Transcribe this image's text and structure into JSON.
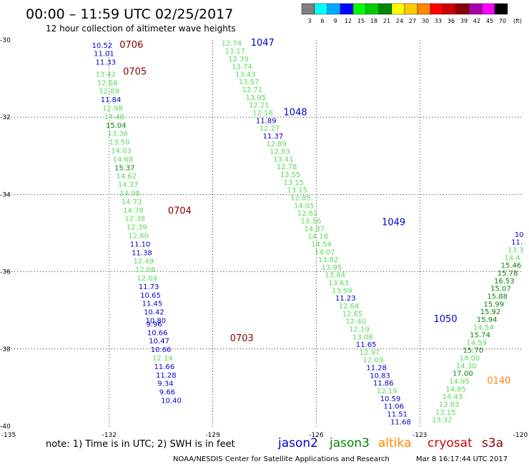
{
  "header": {
    "title": "00:00 – 11:59 UTC 02/25/2017",
    "subtitle": "12 hour collection of altimeter wave heights"
  },
  "legend": {
    "ticks": [
      "3",
      "6",
      "9",
      "12",
      "15",
      "18",
      "21",
      "24",
      "27",
      "30",
      "33",
      "36",
      "39",
      "42",
      "45",
      "70"
    ],
    "unit": "(ft)",
    "colors": [
      "#808080",
      "#00ffff",
      "#00aaff",
      "#0000ff",
      "#00ff00",
      "#00cc00",
      "#008800",
      "#ffff00",
      "#ffcc00",
      "#ff8800",
      "#ff0000",
      "#cc0000",
      "#880000",
      "#aa00aa",
      "#ff00ff",
      "#000000"
    ]
  },
  "axes": {
    "x_ticks": [
      "-135",
      "-132",
      "-129",
      "-126",
      "-123",
      "-120"
    ],
    "y_ticks": [
      "-30",
      "-32",
      "-34",
      "-36",
      "-38",
      "-40"
    ]
  },
  "footer": {
    "note": "note:  1) Time is in UTC; 2) SWH is in feet",
    "satellites": [
      {
        "name": "jason2",
        "color": "#0000cc"
      },
      {
        "name": "jason3",
        "color": "#008800"
      },
      {
        "name": "altika",
        "color": "#ff8800"
      },
      {
        "name": "cryosat",
        "color": "#cc0000"
      },
      {
        "name": "s3a",
        "color": "#880000"
      }
    ],
    "credit": "NOAA/NESDIS Center for Satellite Applications and Research",
    "timestamp": "Mar  8 16:17:44 UTC 2017"
  },
  "tracks": [
    {
      "name": "track-s3a-left",
      "time_labels": [
        {
          "t": "0706",
          "color": "#880000",
          "lon": -131.7,
          "lat": -30.2
        },
        {
          "t": "0705",
          "color": "#880000",
          "lon": -131.6,
          "lat": -30.9
        },
        {
          "t": "0704",
          "color": "#880000",
          "lon": -130.3,
          "lat": -34.5
        },
        {
          "t": "0703",
          "color": "#880000",
          "lon": -128.5,
          "lat": -37.8
        }
      ],
      "points": [
        {
          "v": "10.52",
          "c": "#0000cc",
          "lon": -132.5,
          "lat": -30.2
        },
        {
          "v": "11.01",
          "c": "#0000cc",
          "lon": -132.45,
          "lat": -30.42
        },
        {
          "v": "11.33",
          "c": "#0000cc",
          "lon": -132.4,
          "lat": -30.64
        },
        {
          "v": "13.42",
          "c": "#55dd55",
          "lon": -132.4,
          "lat": -30.95
        },
        {
          "v": "12.68",
          "c": "#55dd55",
          "lon": -132.35,
          "lat": -31.17
        },
        {
          "v": "12.89",
          "c": "#55dd55",
          "lon": -132.3,
          "lat": -31.39
        },
        {
          "v": "11.84",
          "c": "#0000cc",
          "lon": -132.25,
          "lat": -31.61
        },
        {
          "v": "12.98",
          "c": "#55dd55",
          "lon": -132.2,
          "lat": -31.83
        },
        {
          "v": "14.48",
          "c": "#55dd55",
          "lon": -132.15,
          "lat": -32.05
        },
        {
          "v": "15.04",
          "c": "#008800",
          "lon": -132.1,
          "lat": -32.27
        },
        {
          "v": "13.36",
          "c": "#55dd55",
          "lon": -132.05,
          "lat": -32.49
        },
        {
          "v": "13.50",
          "c": "#55dd55",
          "lon": -132.0,
          "lat": -32.71
        },
        {
          "v": "14.03",
          "c": "#55dd55",
          "lon": -131.95,
          "lat": -32.93
        },
        {
          "v": "14.68",
          "c": "#55dd55",
          "lon": -131.9,
          "lat": -33.15
        },
        {
          "v": "15.37",
          "c": "#008800",
          "lon": -131.85,
          "lat": -33.37
        },
        {
          "v": "14.62",
          "c": "#55dd55",
          "lon": -131.8,
          "lat": -33.59
        },
        {
          "v": "14.37",
          "c": "#55dd55",
          "lon": -131.75,
          "lat": -33.81
        },
        {
          "v": "14.98",
          "c": "#55dd55",
          "lon": -131.7,
          "lat": -34.03
        },
        {
          "v": "14.73",
          "c": "#55dd55",
          "lon": -131.65,
          "lat": -34.25
        },
        {
          "v": "14.78",
          "c": "#55dd55",
          "lon": -131.6,
          "lat": -34.47
        },
        {
          "v": "12.38",
          "c": "#55dd55",
          "lon": -131.55,
          "lat": -34.69
        },
        {
          "v": "12.39",
          "c": "#55dd55",
          "lon": -131.5,
          "lat": -34.91
        },
        {
          "v": "12.80",
          "c": "#55dd55",
          "lon": -131.45,
          "lat": -35.13
        },
        {
          "v": "11.10",
          "c": "#0000cc",
          "lon": -131.4,
          "lat": -35.35
        },
        {
          "v": "11.38",
          "c": "#0000cc",
          "lon": -131.35,
          "lat": -35.57
        },
        {
          "v": "12.49",
          "c": "#55dd55",
          "lon": -131.3,
          "lat": -35.79
        },
        {
          "v": "12.08",
          "c": "#55dd55",
          "lon": -131.25,
          "lat": -36.01
        },
        {
          "v": "12.04",
          "c": "#55dd55",
          "lon": -131.2,
          "lat": -36.23
        },
        {
          "v": "11.73",
          "c": "#0000cc",
          "lon": -131.15,
          "lat": -36.45
        },
        {
          "v": "10.65",
          "c": "#0000cc",
          "lon": -131.1,
          "lat": -36.67
        },
        {
          "v": "11.45",
          "c": "#0000cc",
          "lon": -131.05,
          "lat": -36.89
        },
        {
          "v": "10.42",
          "c": "#0000cc",
          "lon": -131.0,
          "lat": -37.11
        },
        {
          "v": "10.80",
          "c": "#0000cc",
          "lon": -130.95,
          "lat": -37.33
        },
        {
          "v": "9.96",
          "c": "#0000cc",
          "lon": -130.93,
          "lat": -37.42
        },
        {
          "v": "10.66",
          "c": "#0000cc",
          "lon": -130.9,
          "lat": -37.64
        },
        {
          "v": "10.47",
          "c": "#0000cc",
          "lon": -130.85,
          "lat": -37.86
        },
        {
          "v": "10.66",
          "c": "#0000cc",
          "lon": -130.8,
          "lat": -38.08
        },
        {
          "v": "12.14",
          "c": "#55dd55",
          "lon": -130.75,
          "lat": -38.3
        },
        {
          "v": "11.66",
          "c": "#0000cc",
          "lon": -130.7,
          "lat": -38.52
        },
        {
          "v": "11.28",
          "c": "#0000cc",
          "lon": -130.65,
          "lat": -38.74
        },
        {
          "v": "9.34",
          "c": "#0000cc",
          "lon": -130.6,
          "lat": -38.96
        },
        {
          "v": "9.66",
          "c": "#0000cc",
          "lon": -130.55,
          "lat": -39.18
        },
        {
          "v": "10.40",
          "c": "#0000cc",
          "lon": -130.5,
          "lat": -39.4
        }
      ]
    },
    {
      "name": "track-jason2-middle",
      "time_labels": [
        {
          "t": "1047",
          "color": "#0000cc",
          "lon": -127.9,
          "lat": -30.15
        },
        {
          "t": "1048",
          "color": "#0000cc",
          "lon": -126.95,
          "lat": -31.95
        },
        {
          "t": "1049",
          "color": "#0000cc",
          "lon": -124.1,
          "lat": -34.8
        },
        {
          "t": "1050",
          "color": "#0000cc",
          "lon": -122.6,
          "lat": -37.3
        }
      ],
      "points": [
        {
          "v": "12.74",
          "c": "#55dd55",
          "lon": -128.75,
          "lat": -30.15
        },
        {
          "v": "13.17",
          "c": "#55dd55",
          "lon": -128.65,
          "lat": -30.35
        },
        {
          "v": "12.39",
          "c": "#55dd55",
          "lon": -128.55,
          "lat": -30.55
        },
        {
          "v": "13.74",
          "c": "#55dd55",
          "lon": -128.45,
          "lat": -30.75
        },
        {
          "v": "13.43",
          "c": "#55dd55",
          "lon": -128.35,
          "lat": -30.95
        },
        {
          "v": "13.57",
          "c": "#55dd55",
          "lon": -128.25,
          "lat": -31.15
        },
        {
          "v": "12.71",
          "c": "#55dd55",
          "lon": -128.15,
          "lat": -31.35
        },
        {
          "v": "13.95",
          "c": "#55dd55",
          "lon": -128.05,
          "lat": -31.55
        },
        {
          "v": "12.21",
          "c": "#55dd55",
          "lon": -127.95,
          "lat": -31.75
        },
        {
          "v": "12.18",
          "c": "#55dd55",
          "lon": -127.85,
          "lat": -31.95
        },
        {
          "v": "11.89",
          "c": "#0000cc",
          "lon": -127.75,
          "lat": -32.15
        },
        {
          "v": "12.27",
          "c": "#55dd55",
          "lon": -127.65,
          "lat": -32.35
        },
        {
          "v": "11.37",
          "c": "#0000cc",
          "lon": -127.55,
          "lat": -32.55
        },
        {
          "v": "12.89",
          "c": "#55dd55",
          "lon": -127.45,
          "lat": -32.75
        },
        {
          "v": "12.83",
          "c": "#55dd55",
          "lon": -127.35,
          "lat": -32.95
        },
        {
          "v": "13.41",
          "c": "#55dd55",
          "lon": -127.25,
          "lat": -33.15
        },
        {
          "v": "12.78",
          "c": "#55dd55",
          "lon": -127.15,
          "lat": -33.35
        },
        {
          "v": "13.55",
          "c": "#55dd55",
          "lon": -127.05,
          "lat": -33.55
        },
        {
          "v": "13.15",
          "c": "#55dd55",
          "lon": -126.95,
          "lat": -33.75
        },
        {
          "v": "13.15",
          "c": "#55dd55",
          "lon": -126.85,
          "lat": -33.95
        },
        {
          "v": "12.85",
          "c": "#55dd55",
          "lon": -126.75,
          "lat": -34.15
        },
        {
          "v": "14.05",
          "c": "#55dd55",
          "lon": -126.65,
          "lat": -34.35
        },
        {
          "v": "12.62",
          "c": "#55dd55",
          "lon": -126.55,
          "lat": -34.55
        },
        {
          "v": "13.56",
          "c": "#55dd55",
          "lon": -126.45,
          "lat": -34.75
        },
        {
          "v": "14.37",
          "c": "#55dd55",
          "lon": -126.35,
          "lat": -34.95
        },
        {
          "v": "14.18",
          "c": "#55dd55",
          "lon": -126.25,
          "lat": -35.15
        },
        {
          "v": "14.54",
          "c": "#55dd55",
          "lon": -126.15,
          "lat": -35.35
        },
        {
          "v": "14.07",
          "c": "#55dd55",
          "lon": -126.05,
          "lat": -35.55
        },
        {
          "v": "13.62",
          "c": "#55dd55",
          "lon": -125.95,
          "lat": -35.75
        },
        {
          "v": "13.95",
          "c": "#55dd55",
          "lon": -125.85,
          "lat": -35.95
        },
        {
          "v": "13.84",
          "c": "#55dd55",
          "lon": -125.75,
          "lat": -36.15
        },
        {
          "v": "13.63",
          "c": "#55dd55",
          "lon": -125.65,
          "lat": -36.35
        },
        {
          "v": "13.99",
          "c": "#55dd55",
          "lon": -125.55,
          "lat": -36.55
        },
        {
          "v": "11.23",
          "c": "#0000cc",
          "lon": -125.45,
          "lat": -36.75
        },
        {
          "v": "12.64",
          "c": "#55dd55",
          "lon": -125.35,
          "lat": -36.95
        },
        {
          "v": "12.65",
          "c": "#55dd55",
          "lon": -125.25,
          "lat": -37.15
        },
        {
          "v": "12.40",
          "c": "#55dd55",
          "lon": -125.15,
          "lat": -37.35
        },
        {
          "v": "12.19",
          "c": "#55dd55",
          "lon": -125.05,
          "lat": -37.55
        },
        {
          "v": "13.08",
          "c": "#55dd55",
          "lon": -124.95,
          "lat": -37.75
        },
        {
          "v": "11.65",
          "c": "#0000cc",
          "lon": -124.85,
          "lat": -37.95
        },
        {
          "v": "12.97",
          "c": "#55dd55",
          "lon": -124.75,
          "lat": -38.15
        },
        {
          "v": "12.09",
          "c": "#55dd55",
          "lon": -124.65,
          "lat": -38.35
        },
        {
          "v": "11.28",
          "c": "#0000cc",
          "lon": -124.55,
          "lat": -38.55
        },
        {
          "v": "10.83",
          "c": "#0000cc",
          "lon": -124.45,
          "lat": -38.75
        },
        {
          "v": "11.86",
          "c": "#0000cc",
          "lon": -124.35,
          "lat": -38.95
        },
        {
          "v": "12.19",
          "c": "#55dd55",
          "lon": -124.25,
          "lat": -39.15
        },
        {
          "v": "10.59",
          "c": "#0000cc",
          "lon": -124.15,
          "lat": -39.35
        },
        {
          "v": "11.06",
          "c": "#0000cc",
          "lon": -124.05,
          "lat": -39.55
        },
        {
          "v": "11.51",
          "c": "#0000cc",
          "lon": -123.95,
          "lat": -39.75
        },
        {
          "v": "11.68",
          "c": "#0000cc",
          "lon": -123.85,
          "lat": -39.95
        },
        {
          "v": "11.49",
          "c": "#0000cc",
          "lon": -123.75,
          "lat": -40.15
        },
        {
          "v": "11.86",
          "c": "#0000cc",
          "lon": -123.65,
          "lat": -40.35
        },
        {
          "v": "12.73",
          "c": "#55dd55",
          "lon": -123.55,
          "lat": -40.55
        }
      ]
    },
    {
      "name": "track-altika-right",
      "time_labels": [
        {
          "t": "0140",
          "color": "#ff8800",
          "lon": -121.05,
          "lat": -38.9
        }
      ],
      "points": [
        {
          "v": "13.32",
          "c": "#55dd55",
          "lon": -122.65,
          "lat": -39.9
        },
        {
          "v": "13.15",
          "c": "#55dd55",
          "lon": -122.55,
          "lat": -39.7
        },
        {
          "v": "13.03",
          "c": "#55dd55",
          "lon": -122.45,
          "lat": -39.5
        },
        {
          "v": "14.43",
          "c": "#55dd55",
          "lon": -122.35,
          "lat": -39.3
        },
        {
          "v": "14.85",
          "c": "#55dd55",
          "lon": -122.25,
          "lat": -39.1
        },
        {
          "v": "14.95",
          "c": "#55dd55",
          "lon": -122.15,
          "lat": -38.9
        },
        {
          "v": "17.00",
          "c": "#008800",
          "lon": -122.05,
          "lat": -38.7
        },
        {
          "v": "14.30",
          "c": "#55dd55",
          "lon": -121.95,
          "lat": -38.5
        },
        {
          "v": "14.00",
          "c": "#55dd55",
          "lon": -121.85,
          "lat": -38.3
        },
        {
          "v": "15.70",
          "c": "#008800",
          "lon": -121.75,
          "lat": -38.1
        },
        {
          "v": "14.59",
          "c": "#55dd55",
          "lon": -121.65,
          "lat": -37.9
        },
        {
          "v": "15.74",
          "c": "#008800",
          "lon": -121.55,
          "lat": -37.7
        },
        {
          "v": "14.54",
          "c": "#55dd55",
          "lon": -121.45,
          "lat": -37.5
        },
        {
          "v": "15.94",
          "c": "#008800",
          "lon": -121.35,
          "lat": -37.3
        },
        {
          "v": "15.92",
          "c": "#008800",
          "lon": -121.25,
          "lat": -37.1
        },
        {
          "v": "15.99",
          "c": "#008800",
          "lon": -121.15,
          "lat": -36.9
        },
        {
          "v": "15.88",
          "c": "#008800",
          "lon": -121.05,
          "lat": -36.7
        },
        {
          "v": "15.07",
          "c": "#008800",
          "lon": -120.95,
          "lat": -36.5
        },
        {
          "v": "16.53",
          "c": "#008800",
          "lon": -120.85,
          "lat": -36.3
        },
        {
          "v": "15.78",
          "c": "#008800",
          "lon": -120.75,
          "lat": -36.1
        },
        {
          "v": "15.46",
          "c": "#008800",
          "lon": -120.65,
          "lat": -35.9
        },
        {
          "v": "14.4",
          "c": "#55dd55",
          "lon": -120.55,
          "lat": -35.7
        },
        {
          "v": "13.3",
          "c": "#55dd55",
          "lon": -120.45,
          "lat": -35.5
        },
        {
          "v": "11.",
          "c": "#0000cc",
          "lon": -120.35,
          "lat": -35.3
        },
        {
          "v": "10",
          "c": "#0000cc",
          "lon": -120.25,
          "lat": -35.1
        }
      ]
    }
  ]
}
